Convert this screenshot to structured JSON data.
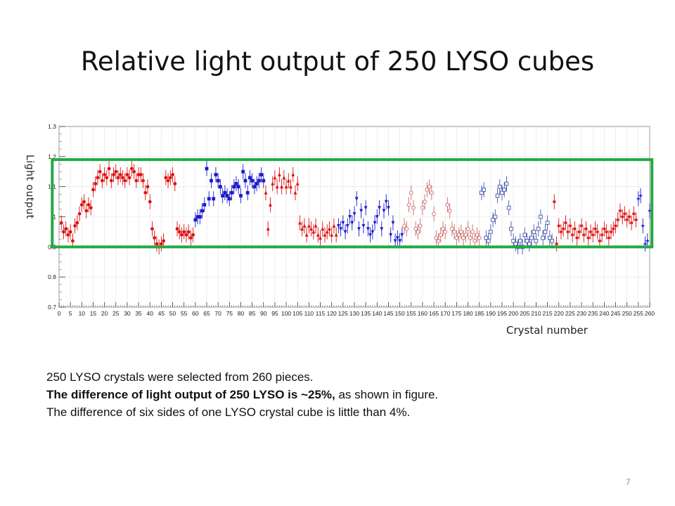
{
  "slide": {
    "title": "Relative light output of 250 LYSO cubes",
    "page_number": "7"
  },
  "notes": {
    "line1": "250 LYSO crystals were selected from 260 pieces.",
    "line2_bold": "The difference of light output of 250 LYSO is ~25%,",
    "line2_rest": " as shown in figure.",
    "line3": "The difference of six sides of one LYSO crystal cube is little than 4%."
  },
  "colors": {
    "red": "#dd1111",
    "blue": "#1a1acc",
    "light_red": "#cc6666",
    "light_blue": "#4455aa",
    "box": "#22aa44"
  },
  "chart_data": {
    "type": "scatter",
    "title": "",
    "xlabel": "Crystal number",
    "ylabel": "Light output",
    "xlim": [
      0,
      260
    ],
    "ylim": [
      0.7,
      1.3
    ],
    "x_ticks": [
      "0",
      "5",
      "10",
      "15",
      "20",
      "25",
      "30",
      "35",
      "40",
      "45",
      "50",
      "55",
      "60",
      "65",
      "70",
      "75",
      "80",
      "85",
      "90",
      "95",
      "100",
      "105",
      "110",
      "115",
      "120",
      "125",
      "130",
      "135",
      "140",
      "145",
      "150",
      "155",
      "160",
      "165",
      "170",
      "175",
      "180",
      "185",
      "190",
      "195",
      "200",
      "205",
      "210",
      "215",
      "220",
      "225",
      "230",
      "235",
      "240",
      "245",
      "250",
      "255",
      "260"
    ],
    "y_ticks": [
      "0.7",
      "0.8",
      "0.9",
      "1",
      "1.1",
      "1.2",
      "1.3"
    ],
    "grid": true,
    "highlight_box": {
      "x": [
        -3,
        261
      ],
      "y": [
        0.9,
        1.19
      ]
    },
    "series": [
      {
        "color_key": "red",
        "marker": "circle",
        "points": [
          [
            1,
            0.98
          ],
          [
            2,
            0.95
          ],
          [
            3,
            0.96
          ],
          [
            4,
            0.94
          ],
          [
            5,
            0.95
          ],
          [
            6,
            0.92
          ],
          [
            7,
            0.97
          ],
          [
            8,
            0.98
          ],
          [
            9,
            1.01
          ],
          [
            10,
            1.04
          ],
          [
            11,
            1.05
          ],
          [
            12,
            1.02
          ],
          [
            13,
            1.04
          ],
          [
            14,
            1.03
          ],
          [
            15,
            1.09
          ],
          [
            16,
            1.11
          ],
          [
            17,
            1.13
          ],
          [
            18,
            1.15
          ],
          [
            19,
            1.12
          ],
          [
            20,
            1.14
          ],
          [
            21,
            1.13
          ],
          [
            22,
            1.16
          ],
          [
            23,
            1.12
          ],
          [
            24,
            1.14
          ],
          [
            25,
            1.15
          ],
          [
            26,
            1.13
          ],
          [
            27,
            1.14
          ],
          [
            28,
            1.13
          ],
          [
            29,
            1.12
          ],
          [
            30,
            1.14
          ],
          [
            31,
            1.13
          ],
          [
            32,
            1.16
          ],
          [
            33,
            1.15
          ],
          [
            34,
            1.12
          ],
          [
            35,
            1.14
          ],
          [
            36,
            1.14
          ],
          [
            37,
            1.12
          ],
          [
            38,
            1.08
          ],
          [
            39,
            1.1
          ],
          [
            40,
            1.05
          ],
          [
            41,
            0.96
          ],
          [
            42,
            0.93
          ],
          [
            43,
            0.91
          ],
          [
            44,
            0.9
          ],
          [
            45,
            0.91
          ],
          [
            46,
            0.92
          ],
          [
            47,
            1.13
          ],
          [
            48,
            1.12
          ],
          [
            49,
            1.13
          ],
          [
            50,
            1.14
          ],
          [
            51,
            1.11
          ],
          [
            52,
            0.96
          ],
          [
            53,
            0.95
          ],
          [
            54,
            0.94
          ],
          [
            55,
            0.95
          ],
          [
            56,
            0.94
          ],
          [
            57,
            0.95
          ],
          [
            58,
            0.93
          ],
          [
            59,
            0.94
          ]
        ]
      },
      {
        "color_key": "blue",
        "marker": "square",
        "points": [
          [
            60,
            0.99
          ],
          [
            61,
            1.0
          ],
          [
            62,
            1.0
          ],
          [
            63,
            1.02
          ],
          [
            64,
            1.04
          ],
          [
            65,
            1.16
          ],
          [
            66,
            1.06
          ],
          [
            67,
            1.12
          ],
          [
            68,
            1.06
          ],
          [
            69,
            1.14
          ],
          [
            70,
            1.12
          ],
          [
            71,
            1.1
          ],
          [
            72,
            1.07
          ],
          [
            73,
            1.08
          ],
          [
            74,
            1.07
          ],
          [
            75,
            1.06
          ],
          [
            76,
            1.08
          ],
          [
            77,
            1.1
          ],
          [
            78,
            1.11
          ],
          [
            79,
            1.1
          ],
          [
            80,
            1.07
          ],
          [
            81,
            1.15
          ],
          [
            82,
            1.12
          ],
          [
            83,
            1.08
          ],
          [
            84,
            1.13
          ],
          [
            85,
            1.12
          ],
          [
            86,
            1.1
          ],
          [
            87,
            1.11
          ],
          [
            88,
            1.12
          ],
          [
            89,
            1.14
          ],
          [
            90,
            1.12
          ]
        ]
      },
      {
        "color_key": "red",
        "marker": "triangle",
        "points": [
          [
            91,
            1.08
          ],
          [
            92,
            0.96
          ],
          [
            93,
            1.04
          ],
          [
            94,
            1.11
          ],
          [
            95,
            1.13
          ],
          [
            96,
            1.1
          ],
          [
            97,
            1.14
          ],
          [
            98,
            1.1
          ],
          [
            99,
            1.13
          ],
          [
            100,
            1.1
          ],
          [
            101,
            1.12
          ],
          [
            102,
            1.1
          ],
          [
            103,
            1.14
          ],
          [
            104,
            1.08
          ],
          [
            105,
            1.11
          ],
          [
            106,
            0.98
          ],
          [
            107,
            0.96
          ],
          [
            108,
            0.97
          ],
          [
            109,
            0.94
          ],
          [
            110,
            0.97
          ],
          [
            111,
            0.96
          ],
          [
            112,
            0.95
          ],
          [
            113,
            0.97
          ],
          [
            114,
            0.94
          ],
          [
            115,
            0.93
          ],
          [
            116,
            0.96
          ],
          [
            117,
            0.94
          ],
          [
            118,
            0.95
          ],
          [
            119,
            0.96
          ],
          [
            120,
            0.94
          ],
          [
            121,
            0.97
          ],
          [
            122,
            0.94
          ]
        ]
      },
      {
        "color_key": "blue",
        "marker": "triangle-down",
        "points": [
          [
            123,
            0.97
          ],
          [
            124,
            0.96
          ],
          [
            125,
            0.98
          ],
          [
            126,
            0.95
          ],
          [
            127,
            0.97
          ],
          [
            128,
            1.0
          ],
          [
            129,
            0.98
          ],
          [
            130,
            1.01
          ],
          [
            131,
            1.06
          ],
          [
            132,
            0.96
          ],
          [
            133,
            1.02
          ],
          [
            134,
            0.97
          ],
          [
            135,
            1.03
          ],
          [
            136,
            0.96
          ],
          [
            137,
            0.94
          ],
          [
            138,
            0.95
          ],
          [
            139,
            0.98
          ],
          [
            140,
            1.0
          ],
          [
            141,
            1.03
          ],
          [
            142,
            0.96
          ],
          [
            143,
            1.02
          ],
          [
            144,
            1.05
          ],
          [
            145,
            1.03
          ],
          [
            146,
            0.94
          ],
          [
            147,
            0.98
          ],
          [
            148,
            0.92
          ],
          [
            149,
            0.93
          ],
          [
            150,
            0.92
          ],
          [
            151,
            0.94
          ]
        ]
      },
      {
        "color_key": "light_red",
        "marker": "circle-open",
        "points": [
          [
            152,
            0.97
          ],
          [
            153,
            0.96
          ],
          [
            154,
            1.04
          ],
          [
            155,
            1.08
          ],
          [
            156,
            1.03
          ],
          [
            157,
            0.96
          ],
          [
            158,
            0.95
          ],
          [
            159,
            0.97
          ],
          [
            160,
            1.03
          ],
          [
            161,
            1.05
          ],
          [
            162,
            1.09
          ],
          [
            163,
            1.1
          ],
          [
            164,
            1.08
          ],
          [
            165,
            1.01
          ],
          [
            166,
            0.93
          ],
          [
            167,
            0.92
          ],
          [
            168,
            0.94
          ],
          [
            169,
            0.96
          ],
          [
            170,
            0.95
          ],
          [
            171,
            1.04
          ],
          [
            172,
            1.02
          ],
          [
            173,
            0.96
          ],
          [
            174,
            0.95
          ],
          [
            175,
            0.93
          ],
          [
            176,
            0.94
          ],
          [
            177,
            0.95
          ],
          [
            178,
            0.93
          ],
          [
            179,
            0.94
          ],
          [
            180,
            0.96
          ],
          [
            181,
            0.93
          ],
          [
            182,
            0.95
          ],
          [
            183,
            0.92
          ],
          [
            184,
            0.94
          ],
          [
            185,
            0.93
          ]
        ]
      },
      {
        "color_key": "light_blue",
        "marker": "square-open",
        "points": [
          [
            186,
            1.08
          ],
          [
            187,
            1.09
          ],
          [
            188,
            0.93
          ],
          [
            189,
            0.92
          ],
          [
            190,
            0.95
          ],
          [
            191,
            0.99
          ],
          [
            192,
            1.0
          ],
          [
            193,
            1.07
          ],
          [
            194,
            1.1
          ],
          [
            195,
            1.08
          ],
          [
            196,
            1.09
          ],
          [
            197,
            1.11
          ],
          [
            198,
            1.03
          ],
          [
            199,
            0.96
          ],
          [
            200,
            0.92
          ],
          [
            201,
            0.91
          ],
          [
            202,
            0.9
          ],
          [
            203,
            0.92
          ],
          [
            204,
            0.9
          ],
          [
            205,
            0.94
          ],
          [
            206,
            0.92
          ],
          [
            207,
            0.91
          ],
          [
            208,
            0.93
          ],
          [
            209,
            0.95
          ],
          [
            210,
            0.92
          ],
          [
            211,
            0.96
          ],
          [
            212,
            1.0
          ],
          [
            213,
            0.93
          ],
          [
            214,
            0.95
          ],
          [
            215,
            0.98
          ],
          [
            216,
            0.93
          ],
          [
            217,
            0.92
          ]
        ]
      },
      {
        "color_key": "red",
        "marker": "star",
        "points": [
          [
            218,
            1.05
          ],
          [
            219,
            0.91
          ],
          [
            220,
            0.97
          ],
          [
            221,
            0.95
          ],
          [
            222,
            0.96
          ],
          [
            223,
            0.98
          ],
          [
            224,
            0.95
          ],
          [
            225,
            0.97
          ],
          [
            226,
            0.94
          ],
          [
            227,
            0.96
          ],
          [
            228,
            0.93
          ],
          [
            229,
            0.95
          ],
          [
            230,
            0.97
          ],
          [
            231,
            0.94
          ],
          [
            232,
            0.96
          ],
          [
            233,
            0.93
          ],
          [
            234,
            0.95
          ],
          [
            235,
            0.94
          ],
          [
            236,
            0.96
          ],
          [
            237,
            0.95
          ],
          [
            238,
            0.92
          ],
          [
            239,
            0.94
          ],
          [
            240,
            0.96
          ],
          [
            241,
            0.95
          ],
          [
            242,
            0.93
          ],
          [
            243,
            0.95
          ],
          [
            244,
            0.96
          ],
          [
            245,
            0.97
          ],
          [
            246,
            0.99
          ],
          [
            247,
            1.02
          ],
          [
            248,
            1.0
          ],
          [
            249,
            1.01
          ],
          [
            250,
            0.99
          ],
          [
            251,
            1.0
          ],
          [
            252,
            0.98
          ],
          [
            253,
            1.01
          ],
          [
            254,
            0.99
          ]
        ]
      },
      {
        "color_key": "blue",
        "marker": "cross",
        "points": [
          [
            255,
            1.06
          ],
          [
            256,
            1.07
          ],
          [
            257,
            0.97
          ],
          [
            258,
            0.91
          ],
          [
            259,
            0.92
          ],
          [
            260,
            1.02
          ]
        ]
      }
    ]
  }
}
